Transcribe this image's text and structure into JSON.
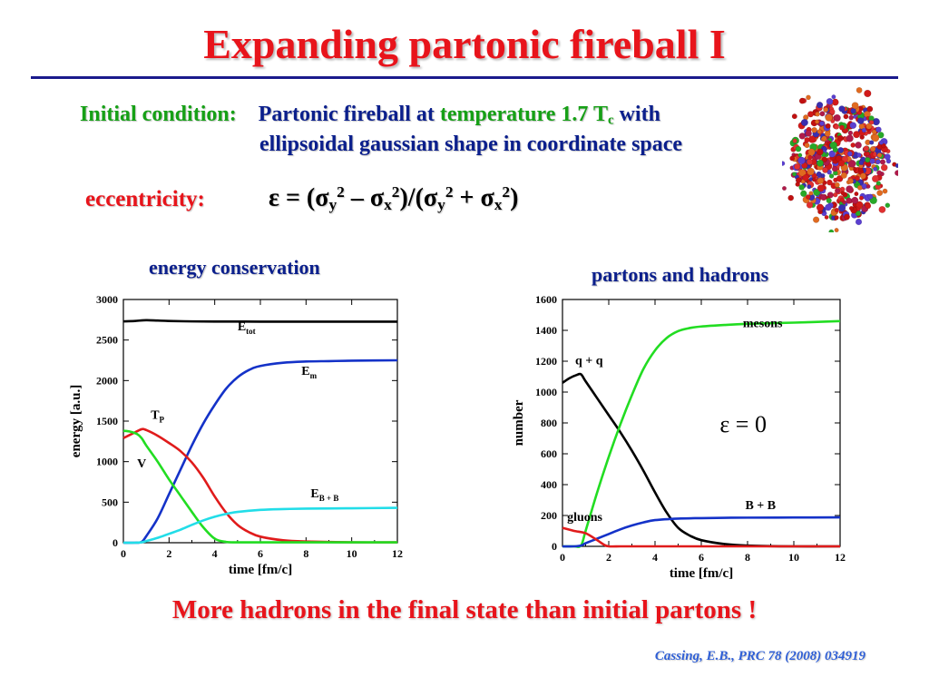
{
  "slide": {
    "title": "Expanding partonic fireball I",
    "initial_label": "Initial condition:",
    "line1_a": "Partonic fireball at",
    "line1_b": "temperature 1.7 T",
    "line1_sub": "c",
    "line1_c": "with",
    "line2": "ellipsoidal gaussian shape in coordinate space",
    "ecc_label": "eccentricity:",
    "ecc_formula": {
      "a": "ε = (σ",
      "y": "y",
      "two": "2",
      "minus": " – σ",
      "x": "x",
      "paren": ")/(σ",
      "plus": " + σ",
      "close": ")"
    },
    "chart1_title": "energy conservation",
    "chart2_title": "partons and hadrons",
    "conclusion": "More hadrons in the final state than initial partons !",
    "citation": "Cassing, E.B., PRC 78 (2008) 034919"
  },
  "colors": {
    "title": "#e8141b",
    "accent_green": "#16a016",
    "navy": "#0b1f8c",
    "citation": "#2f5fd6"
  },
  "chart_data": [
    {
      "type": "line",
      "xlabel": "time [fm/c]",
      "ylabel": "energy [a.u.]",
      "xlim": [
        0,
        12
      ],
      "ylim": [
        0,
        3000
      ],
      "xticks": [
        0,
        2,
        4,
        6,
        8,
        10,
        12
      ],
      "yticks": [
        0,
        500,
        1000,
        1500,
        2000,
        2500,
        3000
      ],
      "annotations": [
        {
          "text": "E",
          "sub": "tot",
          "at": [
            5.0,
            2620
          ]
        },
        {
          "text": "E",
          "sub": "m",
          "at": [
            7.8,
            2070
          ]
        },
        {
          "text": "T",
          "sub": "P",
          "at": [
            1.2,
            1530
          ]
        },
        {
          "text": "V",
          "at": [
            0.6,
            930
          ]
        },
        {
          "text": "E",
          "sub": "B + B",
          "at": [
            8.2,
            560
          ]
        }
      ],
      "series": [
        {
          "name": "E_tot",
          "color": "#000000",
          "x": [
            0,
            0.5,
            1,
            1.5,
            2,
            3,
            4,
            5,
            6,
            8,
            10,
            12
          ],
          "y": [
            2730,
            2735,
            2745,
            2740,
            2735,
            2730,
            2728,
            2728,
            2727,
            2727,
            2727,
            2727
          ]
        },
        {
          "name": "E_m",
          "color": "#1432c8",
          "x": [
            0,
            0.5,
            0.8,
            1,
            1.5,
            2,
            2.5,
            3,
            3.5,
            4,
            4.5,
            5,
            5.5,
            6,
            7,
            8,
            9,
            10,
            12
          ],
          "y": [
            0,
            0,
            10,
            80,
            300,
            600,
            900,
            1200,
            1470,
            1700,
            1900,
            2040,
            2130,
            2180,
            2220,
            2235,
            2240,
            2245,
            2250
          ]
        },
        {
          "name": "T_P",
          "color": "#e01b1b",
          "x": [
            0,
            0.5,
            0.8,
            1,
            1.5,
            2,
            2.5,
            3,
            3.5,
            4,
            4.5,
            5,
            5.5,
            6,
            7,
            8,
            10,
            12
          ],
          "y": [
            1290,
            1360,
            1400,
            1390,
            1320,
            1230,
            1130,
            990,
            800,
            570,
            370,
            220,
            130,
            75,
            30,
            15,
            5,
            5
          ]
        },
        {
          "name": "V",
          "color": "#22dd22",
          "x": [
            0,
            0.3,
            0.6,
            0.8,
            1,
            1.5,
            2,
            2.5,
            3,
            3.5,
            4,
            4.5,
            5,
            6,
            8,
            10,
            12
          ],
          "y": [
            1380,
            1370,
            1340,
            1290,
            1200,
            1000,
            780,
            580,
            380,
            190,
            50,
            10,
            5,
            5,
            5,
            5,
            5
          ]
        },
        {
          "name": "E_B+B",
          "color": "#22dde8",
          "x": [
            0,
            0.5,
            0.8,
            1,
            1.5,
            2,
            2.5,
            3,
            3.5,
            4,
            4.5,
            5,
            6,
            7,
            8,
            10,
            12
          ],
          "y": [
            0,
            0,
            5,
            20,
            60,
            110,
            160,
            220,
            275,
            320,
            355,
            380,
            405,
            415,
            420,
            425,
            430
          ]
        }
      ]
    },
    {
      "type": "line",
      "xlabel": "time [fm/c]",
      "ylabel": "number",
      "xlim": [
        0,
        12
      ],
      "ylim": [
        0,
        1600
      ],
      "xticks": [
        0,
        2,
        4,
        6,
        8,
        10,
        12
      ],
      "yticks": [
        0,
        200,
        400,
        600,
        800,
        1000,
        1200,
        1400,
        1600
      ],
      "annotations": [
        {
          "text": "mesons",
          "at": [
            7.8,
            1420
          ]
        },
        {
          "text": "q + q",
          "at": [
            0.55,
            1180
          ]
        },
        {
          "text": "ε = 0",
          "at": [
            6.8,
            740
          ],
          "large": true
        },
        {
          "text": "B + B",
          "at": [
            7.9,
            240
          ]
        },
        {
          "text": "gluons",
          "at": [
            0.2,
            165
          ]
        }
      ],
      "series": [
        {
          "name": "q + q",
          "color": "#000000",
          "x": [
            0,
            0.3,
            0.6,
            0.8,
            1,
            1.5,
            2,
            2.5,
            3,
            3.5,
            4,
            4.5,
            5,
            5.5,
            6,
            7,
            8,
            10,
            12
          ],
          "y": [
            1060,
            1090,
            1110,
            1115,
            1070,
            960,
            850,
            740,
            620,
            490,
            350,
            220,
            120,
            70,
            40,
            15,
            5,
            0,
            0
          ]
        },
        {
          "name": "mesons",
          "color": "#22dd22",
          "x": [
            0,
            0.5,
            0.8,
            1,
            1.5,
            2,
            2.5,
            3,
            3.5,
            4,
            4.5,
            5,
            5.5,
            6,
            7,
            8,
            10,
            12
          ],
          "y": [
            0,
            0,
            5,
            100,
            350,
            580,
            790,
            980,
            1150,
            1270,
            1350,
            1395,
            1415,
            1425,
            1435,
            1442,
            1450,
            1460
          ]
        },
        {
          "name": "B + B",
          "color": "#1432c8",
          "x": [
            0,
            0.5,
            0.8,
            1,
            1.5,
            2,
            2.5,
            3,
            3.5,
            4,
            5,
            6,
            7,
            8,
            10,
            12
          ],
          "y": [
            0,
            0,
            5,
            20,
            50,
            80,
            110,
            135,
            155,
            170,
            180,
            183,
            185,
            186,
            187,
            188
          ]
        },
        {
          "name": "gluons",
          "color": "#e01b1b",
          "x": [
            0,
            0.5,
            1,
            1.5,
            1.8,
            2,
            2.5,
            3,
            4,
            6,
            8,
            10,
            12
          ],
          "y": [
            120,
            100,
            85,
            40,
            10,
            0,
            0,
            0,
            0,
            0,
            0,
            0,
            0
          ]
        }
      ]
    }
  ]
}
